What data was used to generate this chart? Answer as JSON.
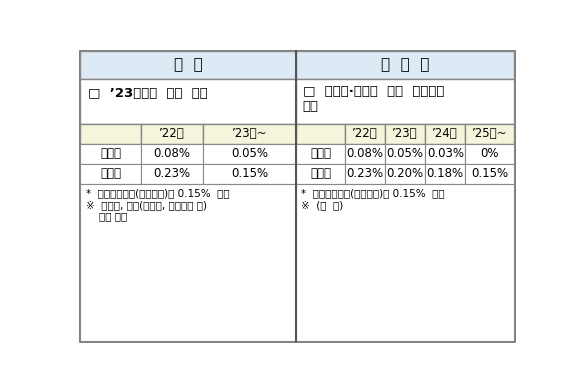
{
  "title_left": "현  행",
  "title_right": "개  정  안",
  "header_bg": "#ddeaf5",
  "subheader_bg": "#f5f5dc",
  "white_bg": "#ffffff",
  "border_color": "#888888",
  "outer_border": "#555555",
  "left_subtitle_line1": "□  ’23년부터  세율  인하",
  "right_subtitle_line1": "□  코스피·코스닥  세율  인하시기",
  "right_subtitle_line2": "조정",
  "left_col_headers": [
    "",
    "’22년",
    "’23년~"
  ],
  "right_col_headers": [
    "",
    "’22년",
    "’23년",
    "’24년",
    "’25년~"
  ],
  "left_rows": [
    [
      "코스피",
      "0.08%",
      "0.05%"
    ],
    [
      "코스닥",
      "0.23%",
      "0.15%"
    ]
  ],
  "right_rows": [
    [
      "코스피",
      "0.08%",
      "0.05%",
      "0.03%",
      "0%"
    ],
    [
      "코스닥",
      "0.23%",
      "0.20%",
      "0.18%",
      "0.15%"
    ]
  ],
  "left_footnote1": "*  농어초특별세(코스피분)는 0.15%  별도",
  "left_footnote2": "※  코넥스, 기타(비상장, 장외거래 등)",
  "left_footnote3": "    현행 유지",
  "right_footnote1": "*  농어초특별세(코스피분)는 0.15%  별도",
  "right_footnote2": "※  (좌  동)"
}
